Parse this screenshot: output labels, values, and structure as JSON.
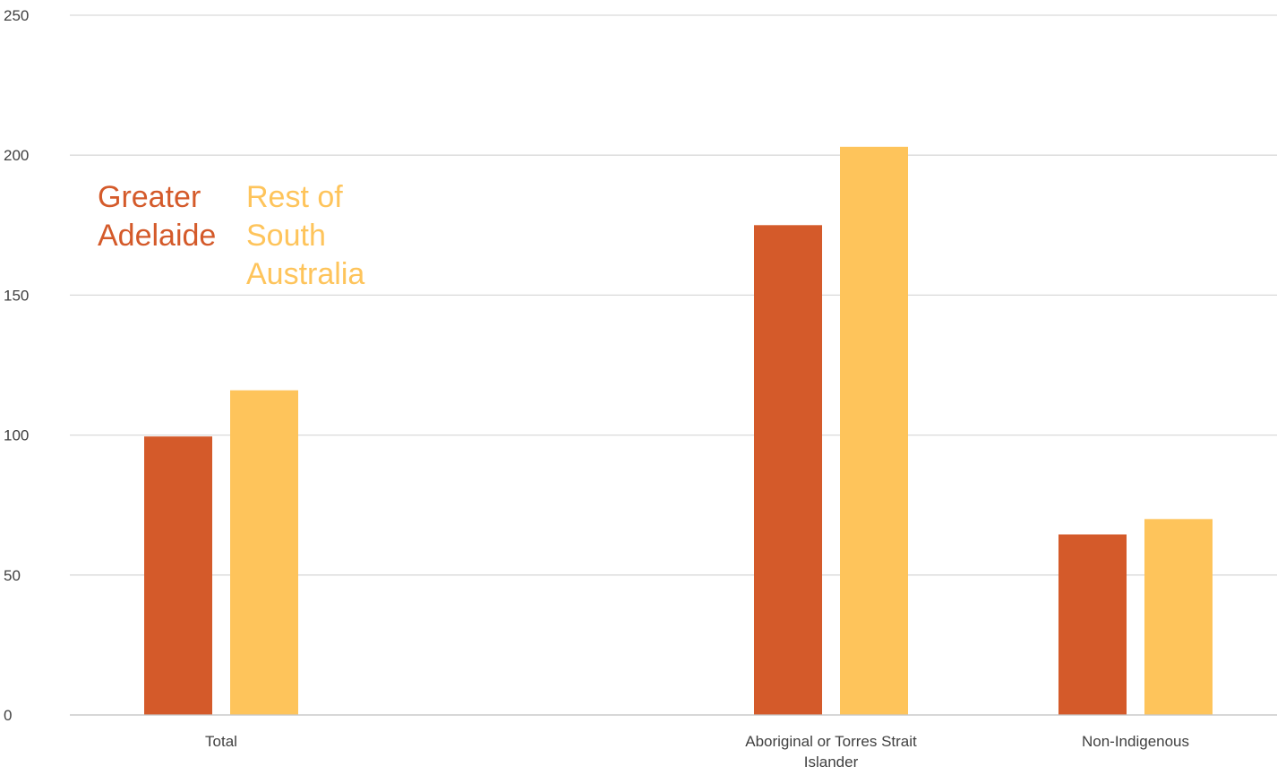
{
  "chart_data": {
    "type": "bar",
    "title": "",
    "xlabel": "",
    "ylabel": "",
    "ylim": [
      0,
      250
    ],
    "yticks": [
      0,
      50,
      100,
      150,
      200,
      250
    ],
    "grid": true,
    "legend_position": "top-left",
    "categories": [
      {
        "lines": [
          "Total"
        ]
      },
      {
        "lines": [
          "Aboriginal or Torres Strait",
          "Islander"
        ]
      },
      {
        "lines": [
          "Non-Indigenous"
        ]
      }
    ],
    "series": [
      {
        "name": "Greater Adelaide",
        "legend_lines": [
          "Greater",
          "Adelaide"
        ],
        "color": "#d45a2a",
        "values": [
          99.5,
          175,
          64.5
        ]
      },
      {
        "name": "Rest of South Australia",
        "legend_lines": [
          "Rest of",
          "South",
          "Australia"
        ],
        "color": "#fec45b",
        "values": [
          116,
          203,
          70
        ]
      }
    ]
  }
}
